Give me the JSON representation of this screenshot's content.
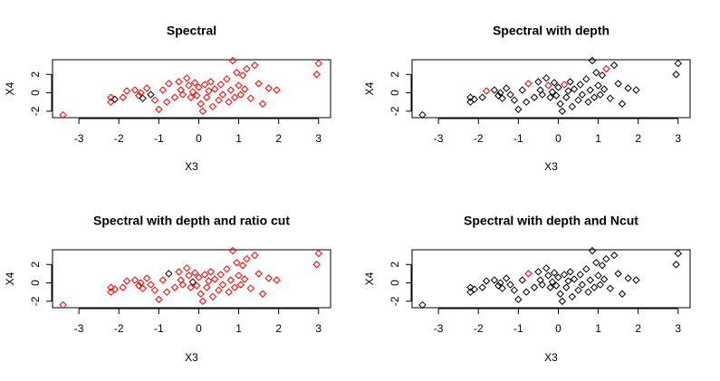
{
  "chart_data": [
    {
      "type": "scatter",
      "title": "Spectral",
      "xlabel": "X3",
      "ylabel": "X4",
      "xlim": [
        -3.66,
        3.3
      ],
      "ylim": [
        -2.7,
        3.6
      ],
      "xticks": [
        -3,
        -2,
        -1,
        0,
        1,
        2,
        3
      ],
      "yticks": [
        -2,
        0,
        2
      ],
      "x": [
        -3.4,
        -2.2,
        -2.2,
        -2.1,
        -1.9,
        -1.8,
        -1.6,
        -1.5,
        -1.45,
        -1.4,
        -1.3,
        -1.2,
        -1.1,
        -1,
        -0.9,
        -0.8,
        -0.75,
        -0.6,
        -0.5,
        -0.45,
        -0.4,
        -0.3,
        -0.25,
        -0.2,
        -0.15,
        -0.1,
        -0.05,
        0,
        0.05,
        0.1,
        0.15,
        0.2,
        0.25,
        0.3,
        0.35,
        0.4,
        0.5,
        0.55,
        0.6,
        0.7,
        0.75,
        0.8,
        0.85,
        0.9,
        0.95,
        1.0,
        1.05,
        1.1,
        1.15,
        1.2,
        1.3,
        1.4,
        1.5,
        1.6,
        1.75,
        1.95,
        2.95,
        3.0
      ],
      "values": [
        -2.4,
        -0.5,
        -1,
        -0.7,
        -0.5,
        0.2,
        0.3,
        -0.3,
        0,
        -0.6,
        0.5,
        -0.2,
        -0.8,
        -1.8,
        0.3,
        -1,
        1.0,
        -0.5,
        1.2,
        0.3,
        -0.2,
        1.6,
        0.8,
        -0.5,
        0.1,
        1.1,
        -0.3,
        0.6,
        -1.2,
        -2.0,
        0.9,
        -0.5,
        0.2,
        1.2,
        -1.5,
        0.4,
        -0.8,
        0.9,
        -0.2,
        1.5,
        -1.0,
        0.3,
        3.5,
        -0.5,
        2.2,
        0.8,
        -0.2,
        1.9,
        0.4,
        2.6,
        -0.6,
        3.0,
        1.0,
        -1.2,
        0.5,
        0.3,
        2.0,
        3.2
      ],
      "colors": [
        "red",
        "red",
        "red",
        "black",
        "red",
        "red",
        "red",
        "red",
        "red",
        "black",
        "red",
        "black",
        "red",
        "red",
        "red",
        "red",
        "red",
        "red",
        "red",
        "red",
        "red",
        "red",
        "red",
        "red",
        "red",
        "red",
        "red",
        "red",
        "red",
        "red",
        "red",
        "red",
        "red",
        "red",
        "red",
        "red",
        "red",
        "red",
        "red",
        "red",
        "red",
        "red",
        "red",
        "red",
        "red",
        "red",
        "red",
        "red",
        "red",
        "red",
        "red",
        "red",
        "red",
        "red",
        "red",
        "red",
        "red",
        "red"
      ]
    },
    {
      "type": "scatter",
      "title": "Spectral with depth",
      "xlabel": "X3",
      "ylabel": "X4",
      "xlim": [
        -3.66,
        3.3
      ],
      "ylim": [
        -2.7,
        3.6
      ],
      "xticks": [
        -3,
        -2,
        -1,
        0,
        1,
        2,
        3
      ],
      "yticks": [
        -2,
        0,
        2
      ],
      "x": [
        -3.4,
        -2.2,
        -2.2,
        -2.1,
        -1.9,
        -1.8,
        -1.6,
        -1.5,
        -1.45,
        -1.4,
        -1.3,
        -1.2,
        -1.1,
        -1,
        -0.9,
        -0.8,
        -0.75,
        -0.6,
        -0.5,
        -0.45,
        -0.4,
        -0.3,
        -0.25,
        -0.2,
        -0.15,
        -0.1,
        -0.05,
        0,
        0.05,
        0.1,
        0.15,
        0.2,
        0.25,
        0.3,
        0.35,
        0.4,
        0.5,
        0.55,
        0.6,
        0.7,
        0.75,
        0.8,
        0.85,
        0.9,
        0.95,
        1.0,
        1.05,
        1.1,
        1.15,
        1.2,
        1.3,
        1.4,
        1.5,
        1.6,
        1.75,
        1.95,
        2.95,
        3.0
      ],
      "values": [
        -2.4,
        -0.5,
        -1,
        -0.7,
        -0.5,
        0.2,
        0.3,
        -0.3,
        0,
        -0.6,
        0.5,
        -0.2,
        -0.8,
        -1.8,
        0.3,
        -1,
        1.0,
        -0.5,
        1.2,
        0.3,
        -0.2,
        1.6,
        0.8,
        -0.5,
        0.1,
        1.1,
        -0.3,
        0.6,
        -1.2,
        -2.0,
        0.9,
        -0.5,
        0.2,
        1.2,
        -1.5,
        0.4,
        -0.8,
        0.9,
        -0.2,
        1.5,
        -1.0,
        0.3,
        3.5,
        -0.5,
        2.2,
        0.8,
        -0.2,
        1.9,
        0.4,
        2.6,
        -0.6,
        3.0,
        1.0,
        -1.2,
        0.5,
        0.3,
        2.0,
        3.2
      ],
      "colors": [
        "black",
        "black",
        "black",
        "black",
        "black",
        "red",
        "black",
        "black",
        "black",
        "black",
        "black",
        "black",
        "black",
        "black",
        "black",
        "black",
        "red",
        "black",
        "black",
        "black",
        "black",
        "black",
        "red",
        "black",
        "black",
        "black",
        "black",
        "black",
        "black",
        "black",
        "red",
        "black",
        "black",
        "black",
        "black",
        "black",
        "black",
        "black",
        "black",
        "black",
        "black",
        "black",
        "black",
        "black",
        "black",
        "black",
        "black",
        "black",
        "black",
        "red",
        "black",
        "black",
        "black",
        "black",
        "black",
        "black",
        "black",
        "black"
      ]
    },
    {
      "type": "scatter",
      "title": "Spectral with depth and ratio cut",
      "xlabel": "X3",
      "ylabel": "X4",
      "xlim": [
        -3.66,
        3.3
      ],
      "ylim": [
        -2.7,
        3.6
      ],
      "xticks": [
        -3,
        -2,
        -1,
        0,
        1,
        2,
        3
      ],
      "yticks": [
        -2,
        0,
        2
      ],
      "x": [
        -3.4,
        -2.2,
        -2.2,
        -2.1,
        -1.9,
        -1.8,
        -1.6,
        -1.5,
        -1.45,
        -1.4,
        -1.3,
        -1.2,
        -1.1,
        -1,
        -0.9,
        -0.8,
        -0.75,
        -0.6,
        -0.5,
        -0.45,
        -0.4,
        -0.3,
        -0.25,
        -0.2,
        -0.15,
        -0.1,
        -0.05,
        0,
        0.05,
        0.1,
        0.15,
        0.2,
        0.25,
        0.3,
        0.35,
        0.4,
        0.5,
        0.55,
        0.6,
        0.7,
        0.75,
        0.8,
        0.85,
        0.9,
        0.95,
        1.0,
        1.05,
        1.1,
        1.15,
        1.2,
        1.3,
        1.4,
        1.5,
        1.6,
        1.75,
        1.95,
        2.95,
        3.0
      ],
      "values": [
        -2.4,
        -0.5,
        -1,
        -0.7,
        -0.5,
        0.2,
        0.3,
        -0.3,
        0,
        -0.6,
        0.5,
        -0.2,
        -0.8,
        -1.8,
        0.3,
        -1,
        1.0,
        -0.5,
        1.2,
        0.3,
        -0.2,
        1.6,
        0.8,
        -0.5,
        0.1,
        1.1,
        -0.3,
        0.6,
        -1.2,
        -2.0,
        0.9,
        -0.5,
        0.2,
        1.2,
        -1.5,
        0.4,
        -0.8,
        0.9,
        -0.2,
        1.5,
        -1.0,
        0.3,
        3.5,
        -0.5,
        2.2,
        0.8,
        -0.2,
        1.9,
        0.4,
        2.6,
        -0.6,
        3.0,
        1.0,
        -1.2,
        0.5,
        0.3,
        2.0,
        3.2
      ],
      "colors": [
        "red",
        "red",
        "red",
        "red",
        "red",
        "red",
        "red",
        "red",
        "red",
        "red",
        "red",
        "red",
        "red",
        "red",
        "red",
        "red",
        "black",
        "red",
        "red",
        "red",
        "red",
        "red",
        "red",
        "red",
        "black",
        "red",
        "red",
        "red",
        "red",
        "red",
        "red",
        "red",
        "red",
        "red",
        "red",
        "red",
        "red",
        "red",
        "red",
        "red",
        "red",
        "red",
        "red",
        "red",
        "red",
        "red",
        "red",
        "red",
        "red",
        "red",
        "red",
        "red",
        "red",
        "red",
        "red",
        "red",
        "red",
        "red"
      ]
    },
    {
      "type": "scatter",
      "title": "Spectral with depth and Ncut",
      "xlabel": "X3",
      "ylabel": "X4",
      "xlim": [
        -3.66,
        3.3
      ],
      "ylim": [
        -2.7,
        3.6
      ],
      "xticks": [
        -3,
        -2,
        -1,
        0,
        1,
        2,
        3
      ],
      "yticks": [
        -2,
        0,
        2
      ],
      "x": [
        -3.4,
        -2.2,
        -2.2,
        -2.1,
        -1.9,
        -1.8,
        -1.6,
        -1.5,
        -1.45,
        -1.4,
        -1.3,
        -1.2,
        -1.1,
        -1,
        -0.9,
        -0.8,
        -0.75,
        -0.6,
        -0.5,
        -0.45,
        -0.4,
        -0.3,
        -0.25,
        -0.2,
        -0.15,
        -0.1,
        -0.05,
        0,
        0.05,
        0.1,
        0.15,
        0.2,
        0.25,
        0.3,
        0.35,
        0.4,
        0.5,
        0.55,
        0.6,
        0.7,
        0.75,
        0.8,
        0.85,
        0.9,
        0.95,
        1.0,
        1.05,
        1.1,
        1.15,
        1.2,
        1.3,
        1.4,
        1.5,
        1.6,
        1.75,
        1.95,
        2.95,
        3.0
      ],
      "values": [
        -2.4,
        -0.5,
        -1,
        -0.7,
        -0.5,
        0.2,
        0.3,
        -0.3,
        0,
        -0.6,
        0.5,
        -0.2,
        -0.8,
        -1.8,
        0.3,
        -1,
        1.0,
        -0.5,
        1.2,
        0.3,
        -0.2,
        1.6,
        0.8,
        -0.5,
        0.1,
        1.1,
        -0.3,
        0.6,
        -1.2,
        -2.0,
        0.9,
        -0.5,
        0.2,
        1.2,
        -1.5,
        0.4,
        -0.8,
        0.9,
        -0.2,
        1.5,
        -1.0,
        0.3,
        3.5,
        -0.5,
        2.2,
        0.8,
        -0.2,
        1.9,
        0.4,
        2.6,
        -0.6,
        3.0,
        1.0,
        -1.2,
        0.5,
        0.3,
        2.0,
        3.2
      ],
      "colors": [
        "black",
        "black",
        "black",
        "black",
        "black",
        "black",
        "black",
        "black",
        "black",
        "black",
        "black",
        "black",
        "black",
        "black",
        "black",
        "black",
        "red",
        "black",
        "black",
        "black",
        "black",
        "black",
        "black",
        "black",
        "black",
        "black",
        "black",
        "black",
        "black",
        "black",
        "black",
        "black",
        "black",
        "black",
        "black",
        "black",
        "black",
        "black",
        "black",
        "black",
        "black",
        "black",
        "black",
        "black",
        "black",
        "black",
        "black",
        "black",
        "black",
        "black",
        "black",
        "black",
        "black",
        "black",
        "black",
        "black",
        "black",
        "black"
      ]
    }
  ]
}
